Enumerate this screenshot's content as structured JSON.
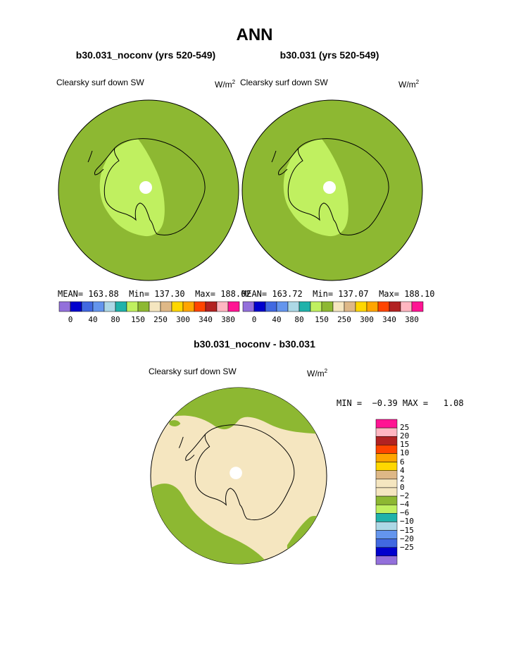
{
  "title": "ANN",
  "panels": [
    {
      "case_title": "b30.031_noconv (yrs 520-549)",
      "variable": "Clearsky surf down SW",
      "units": "W/m",
      "units_exp": "2",
      "stats": "MEAN= 163.88  Min= 137.30  Max= 188.02",
      "colorbar_ticks": [
        "0",
        "40",
        "80",
        "150",
        "250",
        "300",
        "340",
        "380"
      ]
    },
    {
      "case_title": "b30.031 (yrs 520-549)",
      "variable": "Clearsky surf down SW",
      "units": "W/m",
      "units_exp": "2",
      "stats": "MEAN= 163.72  Min= 137.07  Max= 188.10",
      "colorbar_ticks": [
        "0",
        "40",
        "80",
        "150",
        "250",
        "300",
        "340",
        "380"
      ]
    }
  ],
  "colorbar_colors": [
    "#9370db",
    "#0000cd",
    "#4169e1",
    "#6495ed",
    "#add8e6",
    "#20b2aa",
    "#c0f060",
    "#8db832",
    "#f5e6c0",
    "#deb887",
    "#ffd700",
    "#ffa500",
    "#ff4500",
    "#b22222",
    "#ffb6c1",
    "#ff1493"
  ],
  "difference": {
    "title": "b30.031_noconv - b30.031",
    "variable": "Clearsky surf down SW",
    "units": "W/m",
    "units_exp": "2",
    "stats": "MIN =  −0.39 MAX =   1.08",
    "colorbar_labels": [
      "25",
      "20",
      "15",
      "10",
      "6",
      "4",
      "2",
      "0",
      "−2",
      "−4",
      "−6",
      "−10",
      "−15",
      "−20",
      "−25"
    ],
    "colorbar_colors": [
      "#ff1493",
      "#ffb6c1",
      "#b22222",
      "#ff4500",
      "#ffa500",
      "#ffd700",
      "#deb887",
      "#f5e6c0",
      "#f5e6c0",
      "#8db832",
      "#c0f060",
      "#20b2aa",
      "#add8e6",
      "#6495ed",
      "#4169e1",
      "#0000cd",
      "#9370db"
    ]
  },
  "map_colors": {
    "outer_green": "#8db832",
    "light_green": "#c0f060",
    "tan": "#f5e6c0",
    "pole_hole": "#ffffff",
    "coast": "#000000"
  }
}
